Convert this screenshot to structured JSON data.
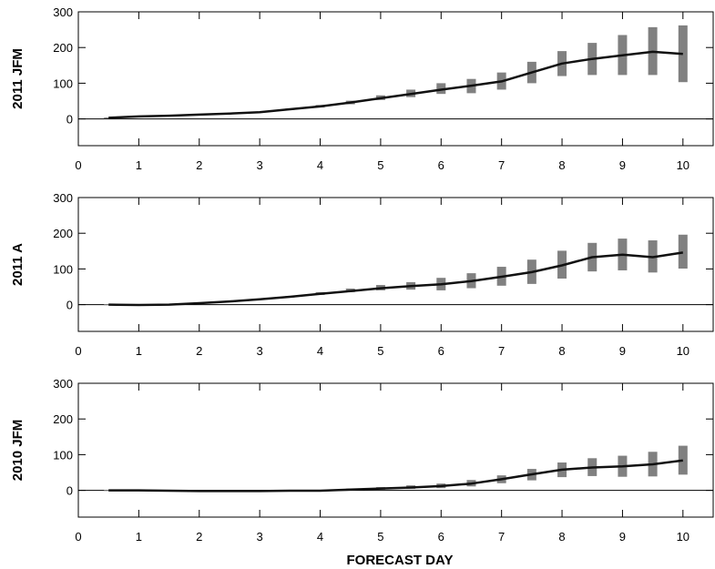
{
  "figure": {
    "xlabel": "FORECAST DAY"
  },
  "colors": {
    "line": "#111111",
    "bar": "#808080",
    "zero_line": "#000000",
    "frame": "#000000"
  },
  "chart_data": [
    {
      "type": "line",
      "ylabel": "2011 JFM",
      "xlim": [
        0,
        10.5
      ],
      "ylim": [
        -75,
        300
      ],
      "xticks": [
        0,
        1,
        2,
        3,
        4,
        5,
        6,
        7,
        8,
        9,
        10
      ],
      "yticks": [
        0,
        100,
        200,
        300
      ],
      "x": [
        0.5,
        1,
        1.5,
        2,
        2.5,
        3,
        3.5,
        4,
        4.5,
        5,
        5.5,
        6,
        6.5,
        7,
        7.5,
        8,
        8.5,
        9,
        9.5,
        10
      ],
      "y": [
        3,
        7,
        9,
        12,
        15,
        19,
        27,
        35,
        46,
        58,
        70,
        82,
        93,
        105,
        130,
        155,
        168,
        178,
        188,
        182
      ],
      "range_low": [
        2,
        6,
        8,
        11,
        14,
        18,
        25,
        32,
        41,
        53,
        61,
        70,
        72,
        82,
        100,
        120,
        123,
        123,
        123,
        103
      ],
      "range_high": [
        4,
        8,
        10,
        13,
        16,
        20,
        29,
        39,
        51,
        66,
        82,
        100,
        112,
        130,
        160,
        190,
        213,
        235,
        257,
        262
      ]
    },
    {
      "type": "line",
      "ylabel": "2011 A",
      "xlim": [
        0,
        10.5
      ],
      "ylim": [
        -75,
        300
      ],
      "xticks": [
        0,
        1,
        2,
        3,
        4,
        5,
        6,
        7,
        8,
        9,
        10
      ],
      "yticks": [
        0,
        100,
        200,
        300
      ],
      "x": [
        0.5,
        1,
        1.5,
        2,
        2.5,
        3,
        3.5,
        4,
        4.5,
        5,
        5.5,
        6,
        6.5,
        7,
        7.5,
        8,
        8.5,
        9,
        9.5,
        10
      ],
      "y": [
        0,
        -1,
        0,
        4,
        9,
        15,
        22,
        30,
        38,
        46,
        52,
        57,
        66,
        78,
        91,
        110,
        133,
        140,
        133,
        146
      ],
      "range_low": [
        -1,
        -2,
        -1,
        3,
        8,
        14,
        20,
        27,
        35,
        40,
        42,
        40,
        46,
        53,
        58,
        73,
        93,
        96,
        90,
        101
      ],
      "range_high": [
        1,
        0,
        1,
        5,
        10,
        16,
        24,
        35,
        45,
        55,
        63,
        75,
        88,
        106,
        126,
        151,
        173,
        185,
        180,
        196
      ]
    },
    {
      "type": "line",
      "ylabel": "2010 JFM",
      "xlim": [
        0,
        10.5
      ],
      "ylim": [
        -75,
        300
      ],
      "xticks": [
        0,
        1,
        2,
        3,
        4,
        5,
        6,
        7,
        8,
        9,
        10
      ],
      "yticks": [
        0,
        100,
        200,
        300
      ],
      "x": [
        0.5,
        1,
        1.5,
        2,
        2.5,
        3,
        3.5,
        4,
        4.5,
        5,
        5.5,
        6,
        6.5,
        7,
        7.5,
        8,
        8.5,
        9,
        9.5,
        10
      ],
      "y": [
        0,
        0,
        -1,
        -2,
        -2,
        -2,
        -1,
        -1,
        2,
        5,
        8,
        12,
        19,
        31,
        45,
        58,
        64,
        67,
        73,
        84
      ],
      "range_low": [
        -1,
        -1,
        -2,
        -3,
        -3,
        -3,
        -2,
        -2,
        0,
        2,
        4,
        6,
        11,
        20,
        28,
        37,
        40,
        38,
        39,
        44
      ],
      "range_high": [
        1,
        1,
        0,
        -1,
        -1,
        -1,
        0,
        1,
        5,
        9,
        14,
        19,
        29,
        42,
        60,
        78,
        90,
        97,
        108,
        125
      ]
    }
  ]
}
